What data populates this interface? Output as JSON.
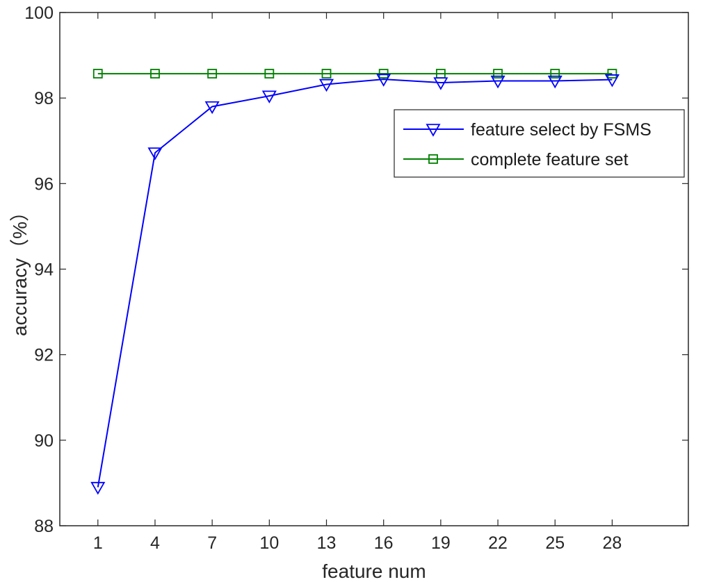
{
  "chart_data": {
    "type": "line",
    "title": "",
    "xlabel": "feature num",
    "ylabel": "accuracy（%）",
    "x": [
      1,
      4,
      7,
      10,
      13,
      16,
      19,
      22,
      25,
      28
    ],
    "xlim": [
      -1,
      32
    ],
    "ylim": [
      88,
      100
    ],
    "xticks": [
      1,
      4,
      7,
      10,
      13,
      16,
      19,
      22,
      25,
      28
    ],
    "yticks": [
      88,
      90,
      92,
      94,
      96,
      98,
      100
    ],
    "grid": false,
    "legend_position": "upper-right",
    "series": [
      {
        "name": "feature select by FSMS",
        "color": "#0000ff",
        "marker": "triangle-down",
        "values": [
          88.9,
          96.72,
          97.8,
          98.05,
          98.32,
          98.44,
          98.36,
          98.4,
          98.4,
          98.43
        ]
      },
      {
        "name": "complete feature set",
        "color": "#008000",
        "marker": "square",
        "values": [
          98.57,
          98.57,
          98.57,
          98.57,
          98.57,
          98.57,
          98.57,
          98.57,
          98.57,
          98.57
        ]
      }
    ]
  }
}
